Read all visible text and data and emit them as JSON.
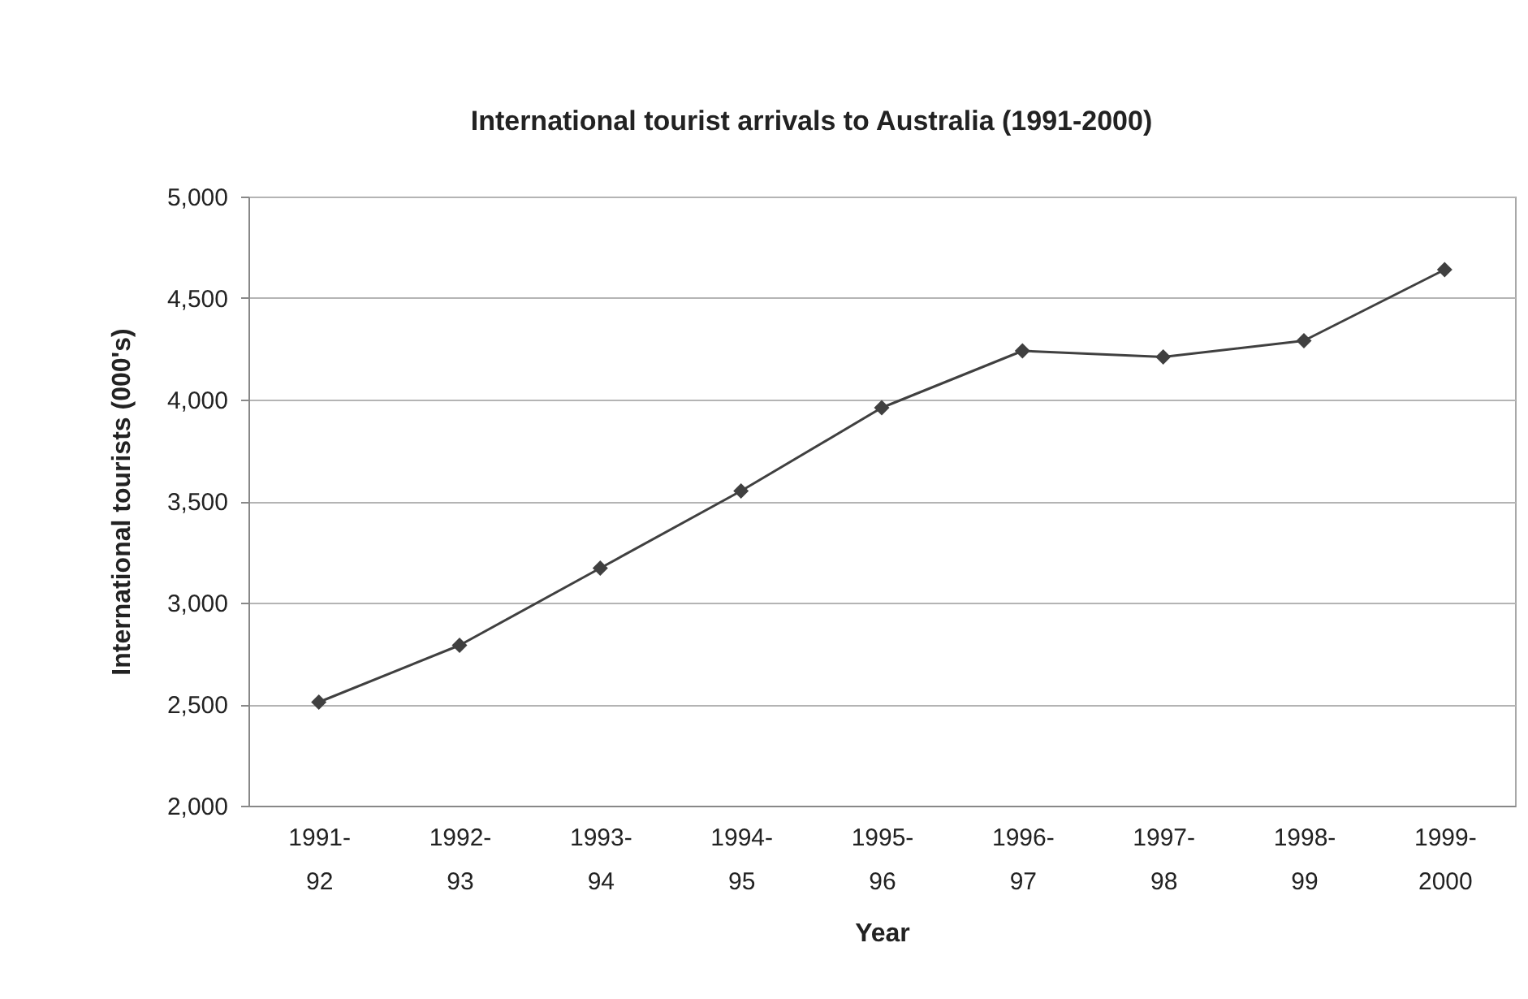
{
  "chart_data": {
    "type": "line",
    "title": "International tourist arrivals to Australia (1991-2000)",
    "xlabel": "Year",
    "ylabel": "International tourists (000's)",
    "categories": [
      "1991-92",
      "1992-93",
      "1993-94",
      "1994-95",
      "1995-96",
      "1996-97",
      "1997-98",
      "1998-99",
      "1999-2000"
    ],
    "series": [
      {
        "color": "#404040",
        "values": [
          2510,
          2790,
          3170,
          3550,
          3960,
          4240,
          4210,
          4290,
          4640
        ]
      }
    ],
    "ylim": [
      2000,
      5000
    ],
    "yticks": [
      {
        "value": 2000,
        "label": "2,000"
      },
      {
        "value": 2500,
        "label": "2,500"
      },
      {
        "value": 3000,
        "label": "3,000"
      },
      {
        "value": 3500,
        "label": "3,500"
      },
      {
        "value": 4000,
        "label": "4,000"
      },
      {
        "value": 4500,
        "label": "4,500"
      },
      {
        "value": 5000,
        "label": "5,000"
      }
    ],
    "grid": "y",
    "marker": "diamond",
    "line_style": "solid"
  }
}
